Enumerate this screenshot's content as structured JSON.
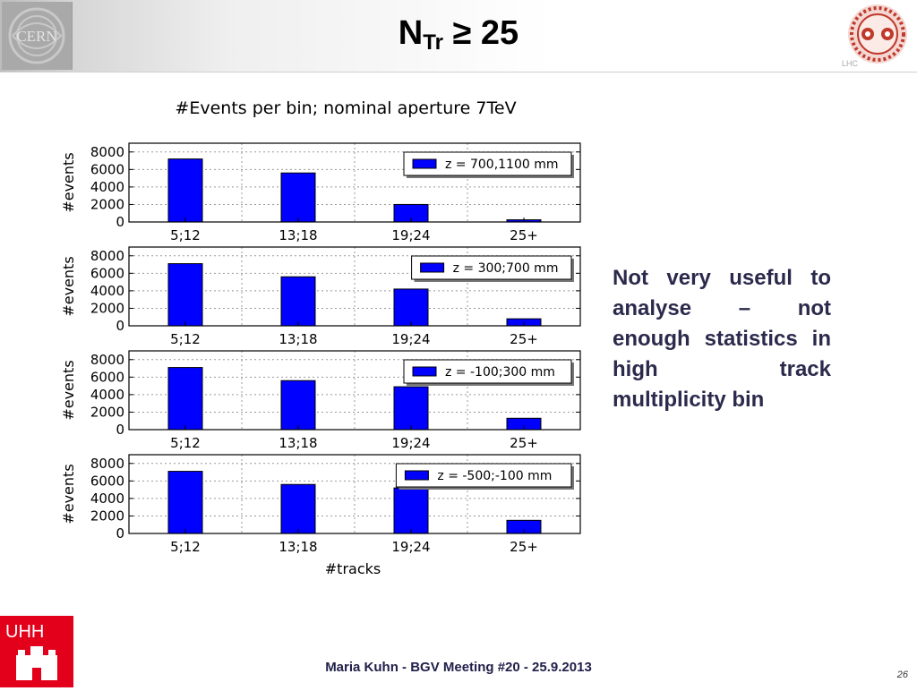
{
  "slide": {
    "title_main": "N",
    "title_sub": "Tr",
    "title_rest": " ≥ 25",
    "side_text": "Not very useful to analyse – not enough statistics in high track multiplicity bin",
    "footer": "Maria Kuhn - BGV Meeting #20 - 25.9.2013",
    "page_number": "26",
    "cern_logo_text": "CERN",
    "lhc_logo_text": "LHC",
    "uhh_logo_text": "UHH"
  },
  "chart_data": {
    "type": "bar",
    "title": "#Events per bin; nominal aperture 7TeV",
    "xlabel": "#tracks",
    "ylabel": "#events",
    "categories": [
      "5;12",
      "13;18",
      "19;24",
      "25+"
    ],
    "ylim": [
      0,
      9000
    ],
    "yticks": [
      0,
      2000,
      4000,
      6000,
      8000
    ],
    "grid": true,
    "bar_color": "#0000ff",
    "legend_position": "top-right",
    "panels": [
      {
        "label": "z = 700,1100 mm",
        "values": [
          7200,
          5600,
          2000,
          250
        ]
      },
      {
        "label": "z = 300;700 mm",
        "values": [
          7100,
          5600,
          4200,
          800
        ]
      },
      {
        "label": "z = -100;300 mm",
        "values": [
          7100,
          5600,
          4900,
          1300
        ]
      },
      {
        "label": "z = -500;-100 mm",
        "values": [
          7100,
          5600,
          5200,
          1500
        ]
      }
    ]
  }
}
